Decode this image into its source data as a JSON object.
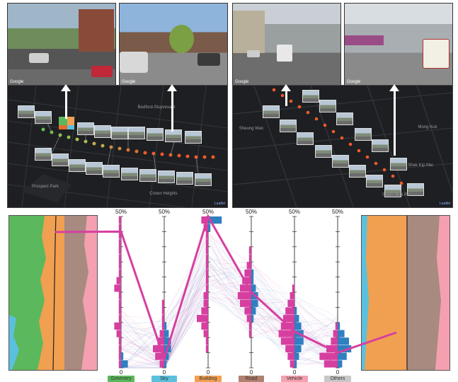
{
  "photos": [
    {
      "id": "photo-1",
      "watermark": "Google"
    },
    {
      "id": "photo-2",
      "watermark": "Google"
    },
    {
      "id": "photo-3",
      "watermark": "Google"
    },
    {
      "id": "photo-4",
      "watermark": "Google"
    }
  ],
  "map_left": {
    "labels": [
      "Bedford-Stuyvesant",
      "Crown Heights",
      "Prospect Park"
    ],
    "attribution": "Leaflet"
  },
  "map_right": {
    "labels": [
      "Sheung Wan",
      "Sham Shui Po",
      "Shek Kip Mei",
      "Mong Kok"
    ],
    "attribution": "Leaflet"
  },
  "colors": {
    "greenery": "#5cb85c",
    "sky": "#5bc0de",
    "building": "#f0a050",
    "road": "#b08070",
    "vehicle": "#f4a0b0",
    "others": "#c8c8c8",
    "highlight": "#d63fa0",
    "compare": "#2f7fc1"
  },
  "chart_data": {
    "type": "parallel-coordinates",
    "axes": [
      {
        "name": "Greenery",
        "top": "50%",
        "bottom": "0"
      },
      {
        "name": "Sky",
        "top": "50%",
        "bottom": "0"
      },
      {
        "name": "Building",
        "top": "50%",
        "bottom": "0"
      },
      {
        "name": "Road",
        "top": "50%",
        "bottom": "0"
      },
      {
        "name": "Vehicle",
        "top": "50%",
        "bottom": "0"
      },
      {
        "name": "Others",
        "top": "50%",
        "bottom": "0"
      }
    ],
    "ylim": [
      0,
      50
    ],
    "highlight_series": {
      "values": [
        45,
        3,
        50,
        25,
        12,
        5
      ]
    },
    "pink_hist": [
      [
        1,
        1,
        1,
        1,
        2,
        3,
        1,
        1,
        1,
        1,
        3,
        2,
        1,
        1,
        1,
        1,
        1,
        1,
        1,
        1
      ],
      [
        2,
        4,
        5,
        3,
        2,
        1,
        1,
        1,
        1,
        0,
        0,
        0,
        0,
        0,
        0,
        0,
        0,
        0,
        0,
        0
      ],
      [
        0,
        0,
        1,
        1,
        2,
        3,
        5,
        3,
        2,
        2,
        1,
        1,
        1,
        1,
        1,
        1,
        1,
        1,
        2,
        3
      ],
      [
        0,
        0,
        0,
        0,
        1,
        1,
        2,
        3,
        5,
        6,
        5,
        4,
        3,
        2,
        1,
        1,
        0,
        0,
        0,
        0
      ],
      [
        2,
        3,
        4,
        6,
        7,
        6,
        5,
        4,
        3,
        2,
        1,
        0,
        0,
        0,
        0,
        0,
        0,
        0,
        0,
        0
      ],
      [
        6,
        8,
        5,
        3,
        2,
        1,
        0,
        0,
        0,
        0,
        0,
        0,
        0,
        0,
        0,
        0,
        0,
        0,
        0,
        0
      ]
    ],
    "blue_hist": [
      [
        3,
        1,
        0,
        0,
        0,
        0,
        0,
        0,
        0,
        0,
        0,
        0,
        0,
        0,
        0,
        0,
        0,
        0,
        0,
        0
      ],
      [
        1,
        2,
        3,
        3,
        2,
        1,
        0,
        0,
        0,
        0,
        0,
        0,
        0,
        0,
        0,
        0,
        0,
        0,
        0,
        0
      ],
      [
        0,
        0,
        0,
        0,
        0,
        0,
        0,
        0,
        0,
        0,
        0,
        0,
        0,
        0,
        0,
        0,
        0,
        0,
        1,
        6
      ],
      [
        0,
        0,
        0,
        0,
        0,
        0,
        1,
        2,
        3,
        3,
        2,
        1,
        1,
        0,
        0,
        0,
        0,
        0,
        0,
        0
      ],
      [
        1,
        2,
        3,
        4,
        4,
        3,
        2,
        1,
        0,
        0,
        0,
        0,
        0,
        0,
        0,
        0,
        0,
        0,
        0,
        0
      ],
      [
        2,
        4,
        6,
        5,
        3,
        1,
        0,
        0,
        0,
        0,
        0,
        0,
        0,
        0,
        0,
        0,
        0,
        0,
        0,
        0
      ]
    ]
  }
}
